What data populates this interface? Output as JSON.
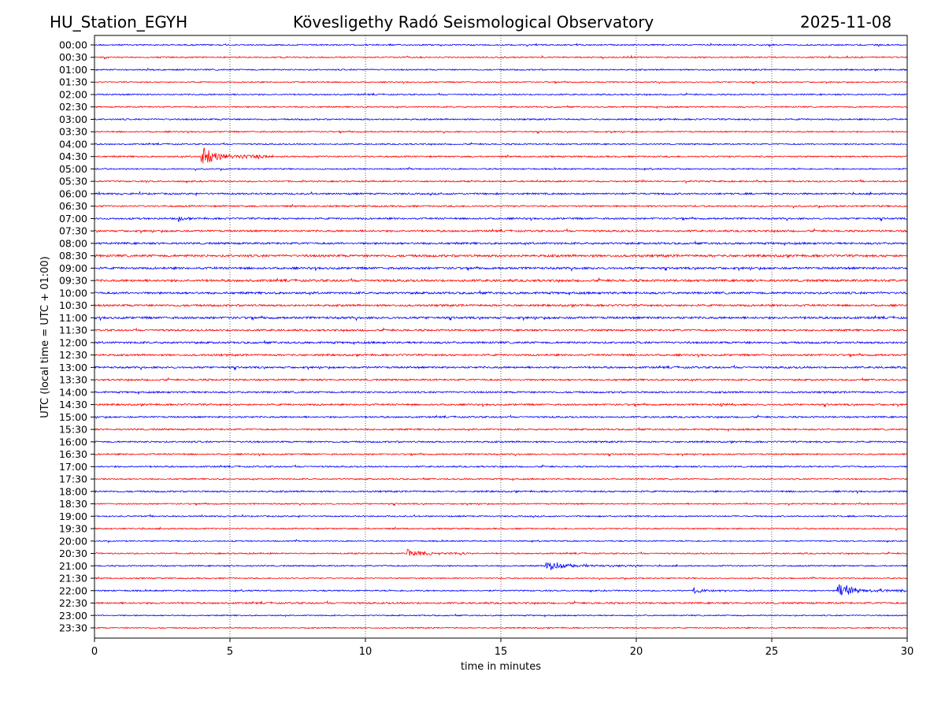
{
  "header": {
    "station": "HU_Station_EGYH",
    "observatory": "Kövesligethy Radó Seismological Observatory",
    "date": "2025-11-08"
  },
  "chart_data": {
    "type": "line",
    "title": "Kövesligethy Radó Seismological Observatory",
    "xlabel": "time in minutes",
    "ylabel": "UTC (local time = UTC + 01:00)",
    "xlim": [
      0,
      30
    ],
    "xticks": [
      "0",
      "5",
      "10",
      "15",
      "20",
      "25",
      "30"
    ],
    "grid": "vertical dotted at 5-minute ticks",
    "colors": [
      "#0000ff",
      "#ff0000"
    ],
    "rows": [
      "00:00",
      "00:30",
      "01:00",
      "01:30",
      "02:00",
      "02:30",
      "03:00",
      "03:30",
      "04:00",
      "04:30",
      "05:00",
      "05:30",
      "06:00",
      "06:30",
      "07:00",
      "07:30",
      "08:00",
      "08:30",
      "09:00",
      "09:30",
      "10:00",
      "10:30",
      "11:00",
      "11:30",
      "12:00",
      "12:30",
      "13:00",
      "13:30",
      "14:00",
      "14:30",
      "15:00",
      "15:30",
      "16:00",
      "16:30",
      "17:00",
      "17:30",
      "18:00",
      "18:30",
      "19:00",
      "19:30",
      "20:00",
      "20:30",
      "21:00",
      "21:30",
      "22:00",
      "22:30",
      "23:00",
      "23:30"
    ],
    "noise_level": [
      1,
      1,
      1,
      0.9,
      1,
      1,
      1.1,
      1,
      1,
      1.1,
      1,
      1.1,
      1.3,
      1.2,
      1.3,
      1.4,
      1.5,
      1.7,
      1.6,
      1.7,
      1.6,
      1.5,
      1.6,
      1.4,
      1.5,
      1.4,
      1.4,
      1.3,
      1.3,
      1.3,
      1.2,
      1.2,
      1.2,
      1.1,
      1.1,
      1,
      1.2,
      1,
      1,
      1,
      0.9,
      1,
      1,
      0.9,
      1,
      1.3,
      0.9,
      0.9
    ],
    "events": [
      {
        "row": "04:30",
        "start_min": 3.9,
        "duration_min": 2.5,
        "amplitude": 14
      },
      {
        "row": "07:00",
        "start_min": 3.1,
        "duration_min": 0.4,
        "amplitude": 5
      },
      {
        "row": "14:30",
        "start_min": 23.1,
        "duration_min": 0.6,
        "amplitude": 4
      },
      {
        "row": "18:30",
        "start_min": 24.05,
        "duration_min": 0.2,
        "amplitude": 3
      },
      {
        "row": "20:30",
        "start_min": 11.5,
        "duration_min": 2.5,
        "amplitude": 7
      },
      {
        "row": "21:00",
        "start_min": 16.6,
        "duration_min": 3.5,
        "amplitude": 7
      },
      {
        "row": "22:00",
        "start_min": 22.1,
        "duration_min": 1.2,
        "amplitude": 5
      },
      {
        "row": "22:00",
        "start_min": 27.4,
        "duration_min": 2.6,
        "amplitude": 10
      }
    ]
  }
}
